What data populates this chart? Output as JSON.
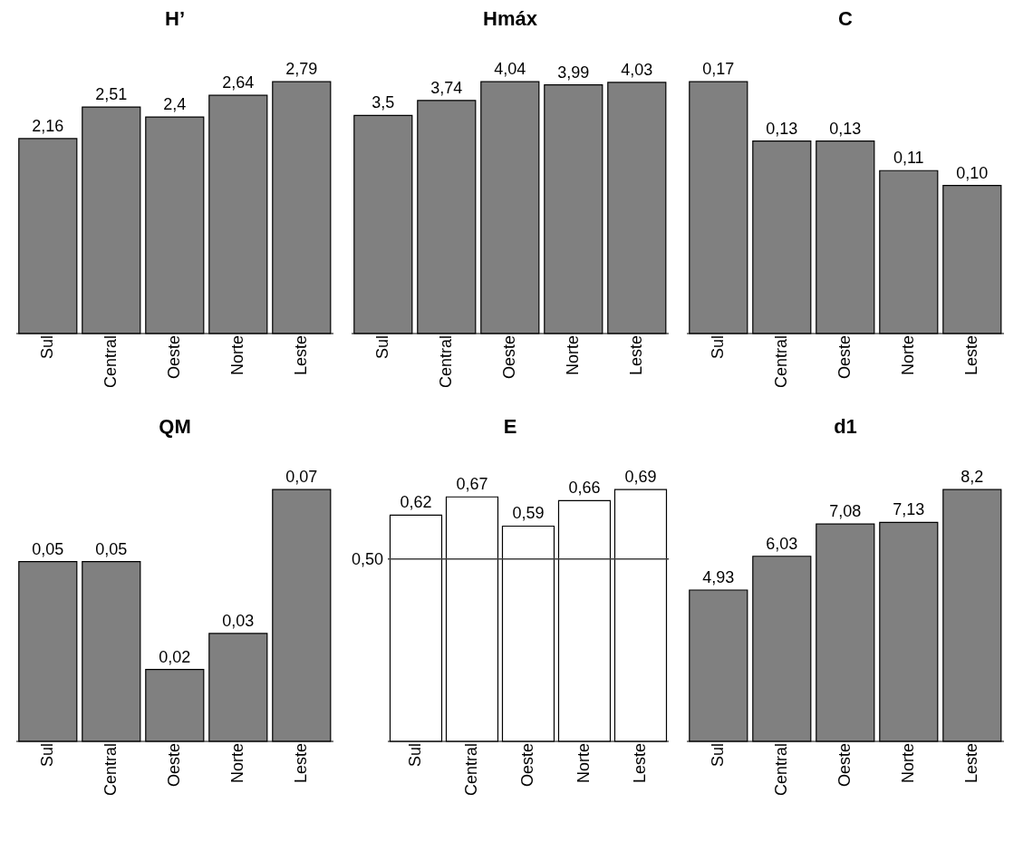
{
  "chart_data": [
    {
      "type": "bar",
      "title": "H’",
      "categories": [
        "Sul",
        "Central",
        "Oeste",
        "Norte",
        "Leste"
      ],
      "values": [
        2.16,
        2.51,
        2.4,
        2.64,
        2.79
      ],
      "value_labels": [
        "2,16",
        "2,51",
        "2,4",
        "2,64",
        "2,79"
      ],
      "color": "#808080",
      "tick_labels": "x"
    },
    {
      "type": "bar",
      "title": "Hmáx",
      "categories": [
        "Sul",
        "Central",
        "Oeste",
        "Norte",
        "Leste"
      ],
      "values": [
        3.5,
        3.74,
        4.04,
        3.99,
        4.03
      ],
      "value_labels": [
        "3,5",
        "3,74",
        "4,04",
        "3,99",
        "4,03"
      ],
      "color": "#808080",
      "tick_labels": "x"
    },
    {
      "type": "bar",
      "title": "C",
      "categories": [
        "Sul",
        "Central",
        "Oeste",
        "Norte",
        "Leste"
      ],
      "values": [
        0.17,
        0.13,
        0.13,
        0.11,
        0.1
      ],
      "value_labels": [
        "0,17",
        "0,13",
        "0,13",
        "0,11",
        "0,10"
      ],
      "color": "#808080",
      "tick_labels": "x"
    },
    {
      "type": "bar",
      "title": "QM",
      "categories": [
        "Sul",
        "Central",
        "Oeste",
        "Norte",
        "Leste"
      ],
      "values": [
        0.05,
        0.05,
        0.02,
        0.03,
        0.07
      ],
      "value_labels": [
        "0,05",
        "0,05",
        "0,02",
        "0,03",
        "0,07"
      ],
      "color": "#808080",
      "tick_labels": "x"
    },
    {
      "type": "bar",
      "title": "E",
      "categories": [
        "Sul",
        "Central",
        "Oeste",
        "Norte",
        "Leste"
      ],
      "values": [
        0.62,
        0.67,
        0.59,
        0.66,
        0.69
      ],
      "value_labels": [
        "0,62",
        "0,67",
        "0,59",
        "0,66",
        "0,69"
      ],
      "color": "#ffffff",
      "tick_labels": "x",
      "ref_lines": [
        {
          "axis": "y",
          "value": 0.5,
          "label": "0,50",
          "color": "#404040"
        }
      ]
    },
    {
      "type": "bar",
      "title": "d1",
      "categories": [
        "Sul",
        "Central",
        "Oeste",
        "Norte",
        "Leste"
      ],
      "values": [
        4.93,
        6.03,
        7.08,
        7.13,
        8.2
      ],
      "value_labels": [
        "4,93",
        "6,03",
        "7,08",
        "7,13",
        "8,2"
      ],
      "color": "#808080",
      "tick_labels": "x"
    }
  ]
}
